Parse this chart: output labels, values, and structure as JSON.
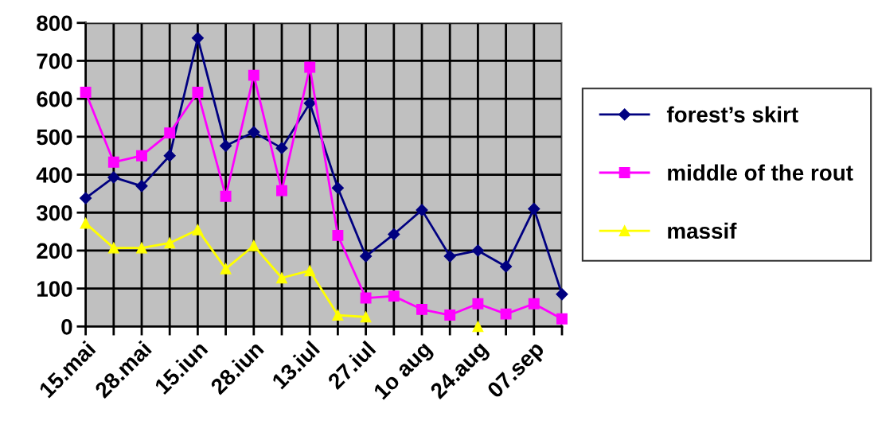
{
  "chart_data": {
    "type": "line",
    "categories": [
      "15.mai",
      null,
      "28.mai",
      null,
      "15.iun",
      null,
      "28.iun",
      null,
      "13.iul",
      null,
      "27.iul",
      null,
      "1o aug",
      null,
      "24.aug",
      null,
      "07.sep",
      null
    ],
    "series": [
      {
        "name": "forest’s skirt",
        "color": "#000080",
        "marker": "diamond",
        "values": [
          338,
          393,
          370,
          450,
          760,
          476,
          512,
          470,
          588,
          365,
          185,
          243,
          307,
          185,
          200,
          158,
          310,
          85
        ]
      },
      {
        "name": "middle of the rout",
        "color": "#ff00ff",
        "marker": "square",
        "values": [
          617,
          433,
          450,
          510,
          617,
          343,
          662,
          358,
          683,
          240,
          75,
          80,
          45,
          30,
          60,
          33,
          60,
          20
        ]
      },
      {
        "name": "massif",
        "color": "#ffff00",
        "marker": "triangle",
        "values": [
          272,
          207,
          207,
          220,
          255,
          152,
          213,
          128,
          147,
          30,
          25,
          null,
          null,
          null,
          0,
          null,
          null,
          null
        ]
      }
    ],
    "ylim": [
      0,
      800
    ],
    "yticks": [
      0,
      100,
      200,
      300,
      400,
      500,
      600,
      700,
      800
    ],
    "grid": true,
    "legend": "right"
  }
}
